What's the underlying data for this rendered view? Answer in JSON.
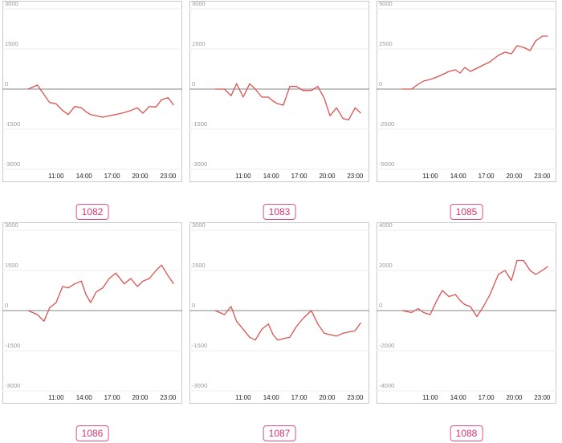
{
  "colors": {
    "series": "#d9534f",
    "grid": "#eeeeee",
    "zero": "#8a8a8a",
    "badge": "#e0508a"
  },
  "chart_data": [
    {
      "type": "line",
      "id_label": "1082",
      "ylim": [
        -3000,
        3000
      ],
      "yticks": [
        3000,
        1500,
        0,
        -1500,
        -3000
      ],
      "xlim": [
        8,
        24
      ],
      "xticks": [
        "11:00",
        "14:00",
        "17:00",
        "20:00",
        "23:00"
      ],
      "series": [
        {
          "x": [
            8,
            9,
            9.7,
            10.3,
            11,
            11.7,
            12.3,
            13,
            13.7,
            14.2,
            14.7,
            15.3,
            16,
            16.7,
            17.4,
            18.3,
            19,
            19.7,
            20.3,
            21,
            21.7,
            22.3,
            23,
            23.6
          ],
          "values": [
            0,
            150,
            -200,
            -500,
            -550,
            -800,
            -950,
            -650,
            -700,
            -850,
            -950,
            -1000,
            -1050,
            -1000,
            -950,
            -880,
            -800,
            -700,
            -900,
            -650,
            -670,
            -400,
            -320,
            -600
          ]
        }
      ]
    },
    {
      "type": "line",
      "id_label": "1083",
      "ylim": [
        -3000,
        3000
      ],
      "yticks": [
        3000,
        1500,
        0,
        -1500,
        -3000
      ],
      "xlim": [
        8,
        24
      ],
      "xticks": [
        "11:00",
        "14:00",
        "17:00",
        "20:00",
        "23:00"
      ],
      "series": [
        {
          "x": [
            8,
            9,
            9.7,
            10.3,
            11,
            11.7,
            12.3,
            13,
            13.7,
            14.2,
            14.7,
            15.3,
            16,
            16.7,
            17.4,
            18.3,
            19,
            19.7,
            20.3,
            21,
            21.7,
            22.3,
            23,
            23.6
          ],
          "values": [
            0,
            0,
            -250,
            200,
            -300,
            200,
            0,
            -300,
            -300,
            -450,
            -550,
            -600,
            100,
            100,
            -50,
            -50,
            100,
            -350,
            -1000,
            -700,
            -1100,
            -1150,
            -700,
            -900
          ]
        }
      ]
    },
    {
      "type": "line",
      "id_label": "1085",
      "ylim": [
        -5000,
        5000
      ],
      "yticks": [
        5000,
        2500,
        0,
        -2500,
        -5000
      ],
      "xlim": [
        8,
        24
      ],
      "xticks": [
        "11:00",
        "14:00",
        "17:00",
        "20:00",
        "23:00"
      ],
      "series": [
        {
          "x": [
            8,
            9,
            9.7,
            10.3,
            11,
            11.7,
            12.3,
            13,
            13.7,
            14.2,
            14.7,
            15.3,
            16,
            16.7,
            17.4,
            18.3,
            19,
            19.7,
            20.3,
            21,
            21.7,
            22.3,
            23,
            23.6
          ],
          "values": [
            0,
            0,
            300,
            500,
            600,
            750,
            900,
            1100,
            1200,
            1000,
            1350,
            1100,
            1300,
            1500,
            1700,
            2100,
            2300,
            2200,
            2700,
            2600,
            2400,
            3000,
            3300,
            3300
          ]
        }
      ]
    },
    {
      "type": "line",
      "id_label": "1086",
      "ylim": [
        -3000,
        3000
      ],
      "yticks": [
        3000,
        1500,
        0,
        -1500,
        -3000
      ],
      "xlim": [
        8,
        24
      ],
      "xticks": [
        "11:00",
        "14:00",
        "17:00",
        "20:00",
        "23:00"
      ],
      "series": [
        {
          "x": [
            8,
            9,
            9.7,
            10.3,
            11,
            11.7,
            12.3,
            13,
            13.7,
            14.2,
            14.7,
            15.3,
            16,
            16.7,
            17.4,
            18.3,
            19,
            19.7,
            20.3,
            21,
            21.7,
            22.3,
            23,
            23.6
          ],
          "values": [
            0,
            -150,
            -400,
            100,
            300,
            900,
            850,
            1000,
            1100,
            600,
            300,
            700,
            850,
            1200,
            1400,
            1000,
            1200,
            900,
            1100,
            1200,
            1500,
            1700,
            1300,
            1000
          ]
        }
      ]
    },
    {
      "type": "line",
      "id_label": "1087",
      "ylim": [
        -3000,
        3000
      ],
      "yticks": [
        3000,
        1500,
        0,
        -1500,
        -3000
      ],
      "xlim": [
        8,
        24
      ],
      "xticks": [
        "11:00",
        "14:00",
        "17:00",
        "20:00",
        "23:00"
      ],
      "series": [
        {
          "x": [
            8,
            9,
            9.7,
            10.3,
            11,
            11.7,
            12.3,
            13,
            13.7,
            14.2,
            14.7,
            15.3,
            16,
            16.7,
            17.4,
            18.3,
            19,
            19.7,
            20.3,
            21,
            21.7,
            22.3,
            23,
            23.6
          ],
          "values": [
            0,
            -150,
            150,
            -400,
            -700,
            -1000,
            -1100,
            -700,
            -500,
            -900,
            -1100,
            -1050,
            -1000,
            -600,
            -300,
            0,
            -500,
            -850,
            -900,
            -950,
            -850,
            -800,
            -750,
            -450
          ]
        }
      ]
    },
    {
      "type": "line",
      "id_label": "1088",
      "ylim": [
        -4000,
        4000
      ],
      "yticks": [
        4000,
        2000,
        0,
        -2000,
        -4000
      ],
      "xlim": [
        8,
        24
      ],
      "xticks": [
        "11:00",
        "14:00",
        "17:00",
        "20:00",
        "23:00"
      ],
      "series": [
        {
          "x": [
            8,
            9,
            9.7,
            10.3,
            11,
            11.7,
            12.3,
            13,
            13.7,
            14.2,
            14.7,
            15.3,
            16,
            16.7,
            17.4,
            18.3,
            19,
            19.7,
            20.3,
            21,
            21.7,
            22.3,
            23,
            23.6
          ],
          "values": [
            0,
            -100,
            100,
            -100,
            -200,
            500,
            1000,
            700,
            800,
            500,
            300,
            200,
            -300,
            200,
            800,
            1800,
            2000,
            1500,
            2500,
            2500,
            2000,
            1800,
            2000,
            2200
          ]
        }
      ]
    }
  ]
}
